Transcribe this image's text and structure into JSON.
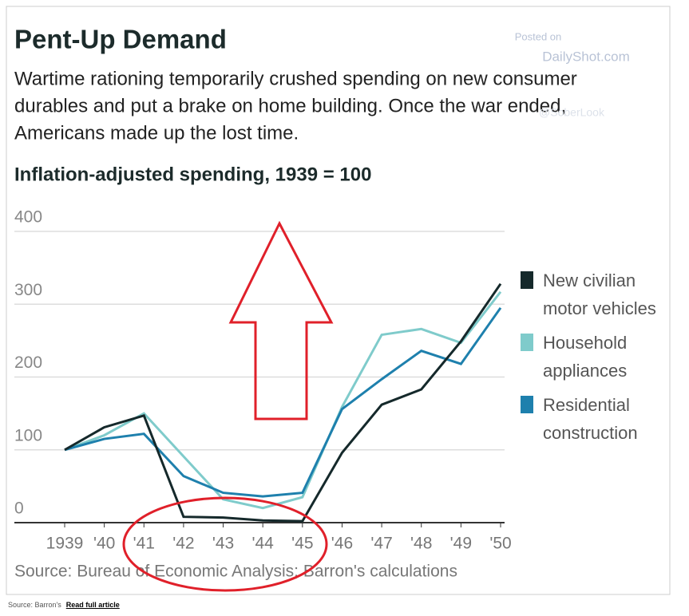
{
  "chart_data": {
    "type": "line",
    "title": "Pent-Up Demand",
    "subtitle": [
      "Wartime rationing temporarily crushed spending on new consumer",
      "durables and put a brake on home building. Once the war ended,",
      "Americans made up the lost time."
    ],
    "y_label": "Inflation-adjusted spending, 1939 = 100",
    "categories": [
      "1939",
      "'40",
      "'41",
      "'42",
      "'43",
      "'44",
      "'45",
      "'46",
      "'47",
      "'48",
      "'49",
      "'50"
    ],
    "series": [
      {
        "name": "New civilian motor vehicles",
        "color": "#15292b",
        "values": [
          100,
          131,
          147,
          8,
          7,
          3,
          2,
          96,
          162,
          183,
          249,
          328
        ]
      },
      {
        "name": "Household appliances",
        "color": "#7fcbcb",
        "values": [
          100,
          120,
          150,
          91,
          32,
          20,
          35,
          159,
          258,
          266,
          247,
          317
        ]
      },
      {
        "name": "Residential construction",
        "color": "#1e80ad",
        "values": [
          100,
          115,
          122,
          64,
          41,
          36,
          41,
          156,
          197,
          236,
          218,
          295
        ]
      }
    ],
    "ylim": [
      0,
      400
    ],
    "yticks": [
      0,
      100,
      200,
      300,
      400
    ],
    "grid": true,
    "source": "Source: Bureau of Economic Analysis; Barron's calculations",
    "watermark": [
      "Posted on",
      "DailyShot.com",
      "@SoberLook"
    ]
  },
  "footer": {
    "source": "Source: Barron's",
    "link": "Read full article"
  }
}
